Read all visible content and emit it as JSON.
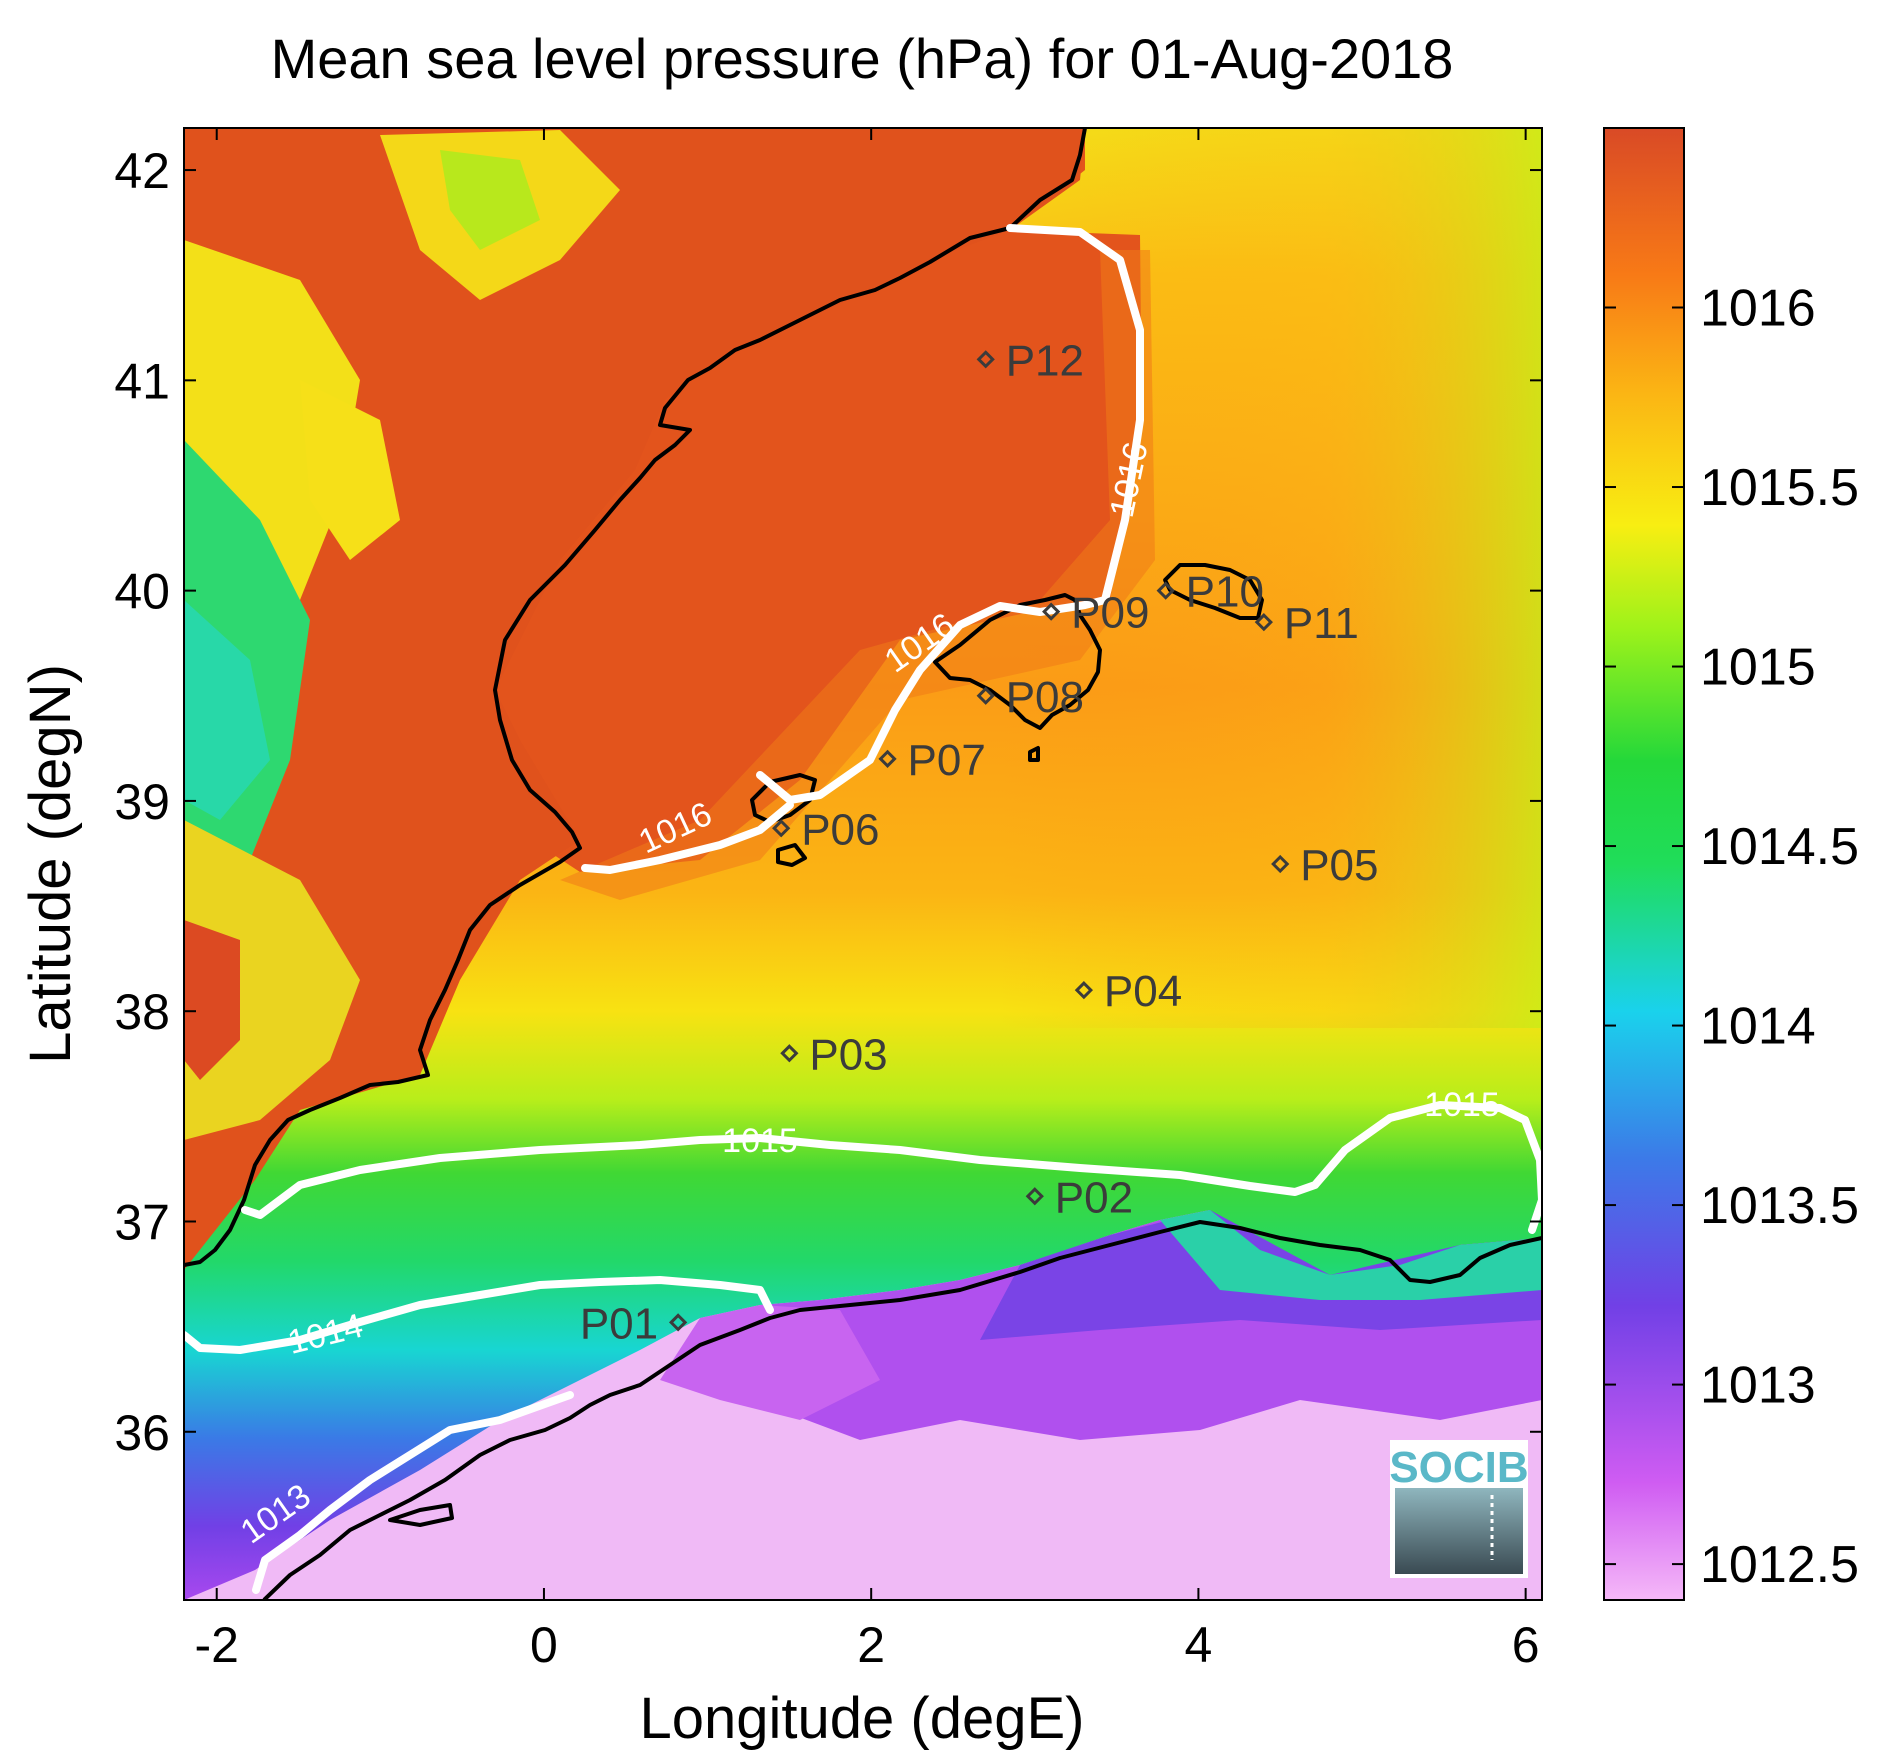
{
  "title": "Mean sea level pressure (hPa) for 01-Aug-2018",
  "chart_data": {
    "type": "heatmap",
    "title": "Mean sea level pressure (hPa) for 01-Aug-2018",
    "xlabel": "Longitude (degE)",
    "ylabel": "Latitude (degN)",
    "xlim": [
      -2.2,
      6.1
    ],
    "ylim": [
      35.2,
      42.2
    ],
    "xticks": [
      -2,
      0,
      2,
      4,
      6
    ],
    "xtick_labels": [
      "-2",
      "0",
      "2",
      "4",
      "6"
    ],
    "yticks": [
      36,
      37,
      38,
      39,
      40,
      41,
      42
    ],
    "ytick_labels": [
      "36",
      "37",
      "38",
      "39",
      "40",
      "41",
      "42"
    ],
    "colorbar": {
      "range": [
        1012.4,
        1016.5
      ],
      "ticks": [
        1012.5,
        1013,
        1013.5,
        1014,
        1014.5,
        1015,
        1015.5,
        1016
      ],
      "tick_labels": [
        "1012.5",
        "1013",
        "1013.5",
        "1014",
        "1014.5",
        "1015",
        "1015.5",
        "1016"
      ],
      "colormap": [
        "#f5b8f8",
        "#cf5cf2",
        "#7140e6",
        "#3c7ae8",
        "#1ad2ec",
        "#20dd5a",
        "#24d83a",
        "#9ef21a",
        "#f8ee12",
        "#fbb514",
        "#f87a16",
        "#e8501e",
        "#d94a26"
      ]
    },
    "contours": [
      {
        "level": 1013,
        "label": "1013",
        "label_pos": [
          -1.55,
          35.4
        ]
      },
      {
        "level": 1014,
        "label": "1014",
        "label_pos": [
          -0.9,
          36.46
        ]
      },
      {
        "level": 1015,
        "label": "1015",
        "label_pos": [
          1.25,
          37.2
        ]
      },
      {
        "level": 1015,
        "label": "1015",
        "label_pos": [
          5.5,
          37.4
        ]
      },
      {
        "level": 1016,
        "label": "1016",
        "label_pos": [
          1.0,
          38.75
        ]
      },
      {
        "level": 1016,
        "label": "1016",
        "label_pos": [
          2.35,
          39.7
        ]
      },
      {
        "level": 1016,
        "label": "1016",
        "label_pos": [
          3.55,
          40.35
        ]
      }
    ],
    "stations": [
      {
        "name": "P01",
        "lon": 0.82,
        "lat": 36.52
      },
      {
        "name": "P02",
        "lon": 3.0,
        "lat": 37.12
      },
      {
        "name": "P03",
        "lon": 1.5,
        "lat": 37.8
      },
      {
        "name": "P04",
        "lon": 3.3,
        "lat": 38.1
      },
      {
        "name": "P05",
        "lon": 4.5,
        "lat": 38.7
      },
      {
        "name": "P06",
        "lon": 1.45,
        "lat": 38.87
      },
      {
        "name": "P07",
        "lon": 2.1,
        "lat": 39.2
      },
      {
        "name": "P08",
        "lon": 2.7,
        "lat": 39.5
      },
      {
        "name": "P09",
        "lon": 3.1,
        "lat": 39.9
      },
      {
        "name": "P10",
        "lon": 3.8,
        "lat": 40.0
      },
      {
        "name": "P11",
        "lon": 4.4,
        "lat": 39.85
      },
      {
        "name": "P12",
        "lon": 2.7,
        "lat": 41.1
      }
    ],
    "grid": false
  },
  "logo": {
    "text": "SOCIB",
    "icon": "socib-logo-icon"
  }
}
